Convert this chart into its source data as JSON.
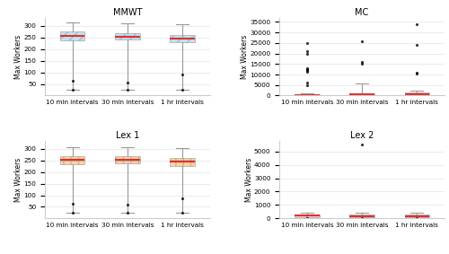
{
  "titles": [
    "MMWT",
    "MC",
    "Lex 1",
    "Lex 2"
  ],
  "xlabel_labels": [
    "10 min intervals",
    "30 min intervals",
    "1 hr intervals"
  ],
  "ylabel": "Max Workers",
  "subplot_colors": [
    "#a8ddf0",
    "#f9b8c8",
    "#f9c87a",
    "#f9b8c8"
  ],
  "median_color": "#e03030",
  "mmwt": {
    "boxes": [
      {
        "med": 258,
        "q1": 237,
        "q3": 278,
        "whislo": 25,
        "whishi": 315,
        "fliers": [
          65,
          25
        ]
      },
      {
        "med": 255,
        "q1": 240,
        "q3": 270,
        "whislo": 25,
        "whishi": 312,
        "fliers": [
          55,
          25
        ]
      },
      {
        "med": 245,
        "q1": 228,
        "q3": 262,
        "whislo": 25,
        "whishi": 308,
        "fliers": [
          90,
          25
        ]
      }
    ],
    "ylim": [
      0,
      335
    ],
    "yticks": [
      50,
      100,
      150,
      200,
      250,
      300
    ],
    "hatch": "///"
  },
  "mc": {
    "boxes": [
      {
        "med": 300,
        "q1": 120,
        "q3": 700,
        "whislo": 10,
        "whishi": 1100,
        "fliers": [
          5000,
          6000,
          11500,
          12000,
          12200,
          12500,
          13000,
          20000,
          21000,
          25000
        ]
      },
      {
        "med": 500,
        "q1": 200,
        "q3": 1000,
        "whislo": 10,
        "whishi": 5700,
        "fliers": [
          15000,
          16000,
          26000
        ]
      },
      {
        "med": 700,
        "q1": 300,
        "q3": 1400,
        "whislo": 10,
        "whishi": 2200,
        "fliers": [
          10500,
          11000,
          24000,
          34000
        ]
      }
    ],
    "ylim": [
      0,
      37000
    ],
    "yticks": [
      0,
      5000,
      10000,
      15000,
      20000,
      25000,
      30000,
      35000
    ],
    "hatch": "xx"
  },
  "lex1": {
    "boxes": [
      {
        "med": 252,
        "q1": 235,
        "q3": 268,
        "whislo": 25,
        "whishi": 305,
        "fliers": [
          65,
          25
        ]
      },
      {
        "med": 253,
        "q1": 237,
        "q3": 268,
        "whislo": 25,
        "whishi": 305,
        "fliers": [
          58,
          25
        ]
      },
      {
        "med": 245,
        "q1": 226,
        "q3": 260,
        "whislo": 25,
        "whishi": 303,
        "fliers": [
          87,
          25
        ]
      }
    ],
    "ylim": [
      0,
      335
    ],
    "yticks": [
      50,
      100,
      150,
      200,
      250,
      300
    ],
    "hatch": "++"
  },
  "lex2": {
    "boxes": [
      {
        "med": 200,
        "q1": 80,
        "q3": 320,
        "whislo": 10,
        "whishi": 420,
        "fliers": [
          10
        ]
      },
      {
        "med": 180,
        "q1": 70,
        "q3": 300,
        "whislo": 10,
        "whishi": 400,
        "fliers": [
          5500,
          10
        ]
      },
      {
        "med": 190,
        "q1": 80,
        "q3": 320,
        "whislo": 10,
        "whishi": 430,
        "fliers": [
          10
        ]
      }
    ],
    "ylim": [
      0,
      5800
    ],
    "yticks": [
      0,
      1000,
      2000,
      3000,
      4000,
      5000
    ],
    "hatch": "xx"
  },
  "figsize": [
    5.0,
    2.83
  ],
  "dpi": 100
}
